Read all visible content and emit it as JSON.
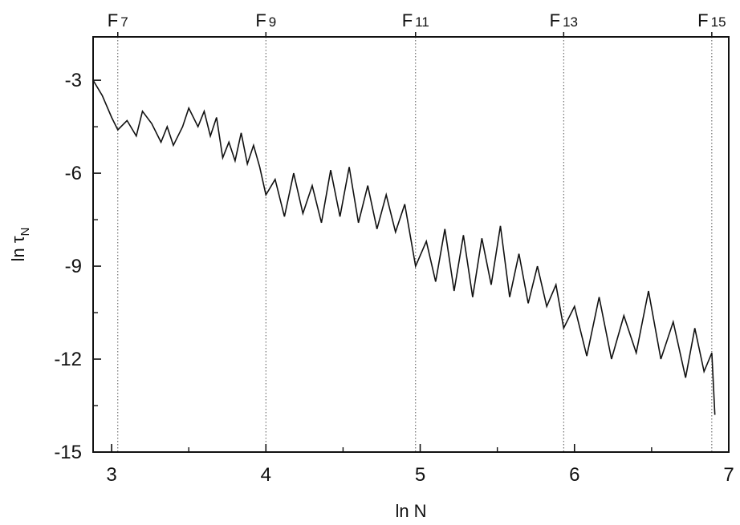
{
  "chart_data": {
    "type": "line",
    "title": "",
    "xlabel": "ln N",
    "ylabel": "ln τ",
    "ylabel_subscript": "N",
    "xlim": [
      2.88,
      7.0
    ],
    "ylim": [
      -15,
      -1.6
    ],
    "x_ticks": [
      3,
      4,
      5,
      6,
      7
    ],
    "x_tick_labels": [
      "3",
      "4",
      "5",
      "6",
      "7"
    ],
    "y_ticks": [
      -3,
      -6,
      -9,
      -12,
      -15
    ],
    "y_tick_labels": [
      "-3",
      "-6",
      "-9",
      "-12",
      "-15"
    ],
    "y_minor_ticks": [
      -4.5,
      -7.5,
      -10.5,
      -13.5
    ],
    "x_minor_ticks": [
      3.5,
      4.5,
      5.5,
      6.5
    ],
    "grid": false,
    "reference_lines": [
      {
        "x": 3.04,
        "label": "F",
        "sub": "7"
      },
      {
        "x": 4.0,
        "label": "F",
        "sub": "9"
      },
      {
        "x": 4.97,
        "label": "F",
        "sub": "11"
      },
      {
        "x": 5.93,
        "label": "F",
        "sub": "13"
      },
      {
        "x": 6.89,
        "label": "F",
        "sub": "15"
      }
    ],
    "series": [
      {
        "x": [
          2.88,
          2.94,
          3.0,
          3.04,
          3.1,
          3.16,
          3.2,
          3.26,
          3.32,
          3.36,
          3.4,
          3.46,
          3.5,
          3.56,
          3.6,
          3.64,
          3.68,
          3.72,
          3.76,
          3.8,
          3.84,
          3.88,
          3.92,
          3.96,
          4.0,
          4.06,
          4.12,
          4.18,
          4.24,
          4.3,
          4.36,
          4.42,
          4.48,
          4.54,
          4.6,
          4.66,
          4.72,
          4.78,
          4.84,
          4.9,
          4.97,
          5.04,
          5.1,
          5.16,
          5.22,
          5.28,
          5.34,
          5.4,
          5.46,
          5.52,
          5.58,
          5.64,
          5.7,
          5.76,
          5.82,
          5.88,
          5.93,
          6.0,
          6.08,
          6.16,
          6.24,
          6.32,
          6.4,
          6.48,
          6.56,
          6.64,
          6.72,
          6.78,
          6.84,
          6.89,
          6.91
        ],
        "y": [
          -3.0,
          -3.5,
          -4.2,
          -4.6,
          -4.3,
          -4.8,
          -4.0,
          -4.4,
          -5.0,
          -4.5,
          -5.1,
          -4.5,
          -3.9,
          -4.5,
          -4.0,
          -4.8,
          -4.2,
          -5.5,
          -5.0,
          -5.6,
          -4.7,
          -5.7,
          -5.1,
          -5.8,
          -6.7,
          -6.2,
          -7.4,
          -6.0,
          -7.3,
          -6.4,
          -7.6,
          -5.9,
          -7.4,
          -5.8,
          -7.6,
          -6.4,
          -7.8,
          -6.7,
          -7.9,
          -7.0,
          -9.0,
          -8.2,
          -9.5,
          -7.8,
          -9.8,
          -8.0,
          -10.0,
          -8.1,
          -9.6,
          -7.7,
          -10.0,
          -8.6,
          -10.2,
          -9.0,
          -10.3,
          -9.6,
          -11.0,
          -10.3,
          -11.9,
          -10.0,
          -12.0,
          -10.6,
          -11.8,
          -9.8,
          -12.0,
          -10.8,
          -12.6,
          -11.0,
          -12.4,
          -11.8,
          -13.8
        ]
      }
    ]
  }
}
